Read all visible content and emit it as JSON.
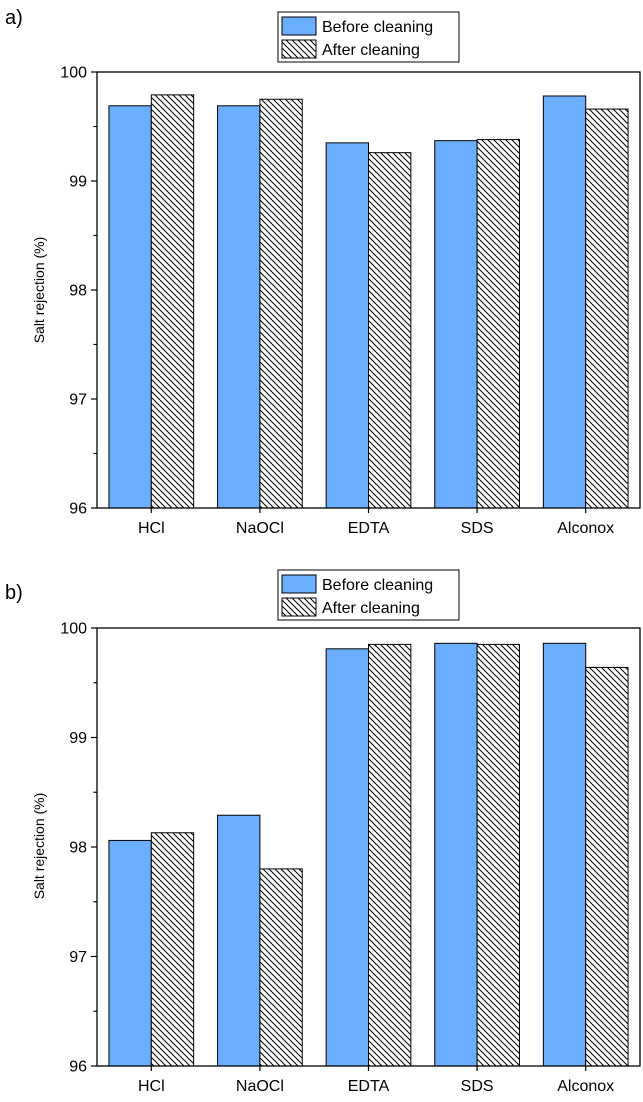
{
  "chart_data": [
    {
      "type": "bar",
      "panel_label": "a)",
      "title": "",
      "xlabel": "",
      "ylabel": "Salt rejection (%)",
      "ylim": [
        96,
        100
      ],
      "yticks": [
        "96",
        "97",
        "98",
        "99",
        "100"
      ],
      "categories": [
        "HCl",
        "NaOCl",
        "EDTA",
        "SDS",
        "Alconox"
      ],
      "series": [
        {
          "name": "Before cleaning",
          "style": "solid",
          "values": [
            99.69,
            99.69,
            99.35,
            99.37,
            99.78
          ]
        },
        {
          "name": "After cleaning",
          "style": "hatched",
          "values": [
            99.79,
            99.75,
            99.26,
            99.38,
            99.66
          ]
        }
      ],
      "legend_position": "top-center",
      "grid": false
    },
    {
      "type": "bar",
      "panel_label": "b)",
      "title": "",
      "xlabel": "",
      "ylabel": "Salt rejection (%)",
      "ylim": [
        96,
        100
      ],
      "yticks": [
        "96",
        "97",
        "98",
        "99",
        "100"
      ],
      "categories": [
        "HCl",
        "NaOCl",
        "EDTA",
        "SDS",
        "Alconox"
      ],
      "series": [
        {
          "name": "Before cleaning",
          "style": "solid",
          "values": [
            98.06,
            98.29,
            99.81,
            99.86,
            99.86
          ]
        },
        {
          "name": "After cleaning",
          "style": "hatched",
          "values": [
            98.13,
            97.8,
            99.85,
            99.85,
            99.64
          ]
        }
      ],
      "legend_position": "top-center",
      "grid": false
    }
  ],
  "colors": {
    "bar_fill": "#6aaeff",
    "hatch": "#000000",
    "axis": "#000000"
  }
}
